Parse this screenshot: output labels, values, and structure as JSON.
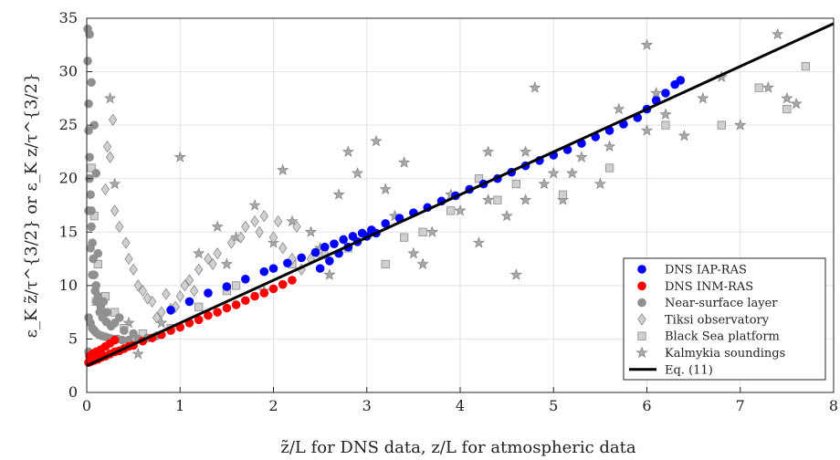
{
  "chart_data": {
    "type": "scatter",
    "xlabel": "z̃/L for DNS data, z/L for atmospheric data",
    "ylabel": "ε_K z̃/τ^{3/2}  or  ε_K z/τ^{3/2}",
    "xlim": [
      0,
      8
    ],
    "ylim": [
      0,
      35
    ],
    "x_ticks": [
      0,
      1,
      2,
      3,
      4,
      5,
      6,
      7,
      8
    ],
    "y_ticks": [
      0,
      5,
      10,
      15,
      20,
      25,
      30,
      35
    ],
    "grid": true,
    "legend_position": "bottom-right",
    "series": [
      {
        "name": "DNS IAP-RAS",
        "marker": "circle",
        "color": "#0000ff",
        "x": [
          2.0,
          2.15,
          2.3,
          2.45,
          2.55,
          2.65,
          2.75,
          2.85,
          2.95,
          3.05,
          3.2,
          3.35,
          3.5,
          3.65,
          3.8,
          3.95,
          4.1,
          4.25,
          4.4,
          4.55,
          4.7,
          4.85,
          5.0,
          5.15,
          5.3,
          5.45,
          5.6,
          5.75,
          5.9,
          6.0,
          6.1,
          6.2,
          6.3,
          6.36,
          2.5,
          2.6,
          2.7,
          2.8,
          2.9,
          3.0,
          3.1,
          1.5,
          1.7,
          1.9,
          0.9,
          1.1,
          1.3
        ],
        "y": [
          11.6,
          12.1,
          12.6,
          13.1,
          13.6,
          13.9,
          14.3,
          14.6,
          14.9,
          15.2,
          15.8,
          16.3,
          16.8,
          17.3,
          17.9,
          18.4,
          19.0,
          19.5,
          20.0,
          20.6,
          21.2,
          21.7,
          22.2,
          22.7,
          23.3,
          23.9,
          24.5,
          25.1,
          25.7,
          26.5,
          27.3,
          28.0,
          28.8,
          29.2,
          11.6,
          12.3,
          13.0,
          13.6,
          14.1,
          14.6,
          14.9,
          9.9,
          10.6,
          11.3,
          7.7,
          8.5,
          9.3
        ]
      },
      {
        "name": "DNS INM-RAS",
        "marker": "circle",
        "color": "#ff0000",
        "x": [
          0.02,
          0.05,
          0.08,
          0.12,
          0.16,
          0.2,
          0.25,
          0.3,
          0.35,
          0.4,
          0.45,
          0.5,
          0.6,
          0.7,
          0.8,
          0.9,
          1.0,
          1.1,
          1.2,
          1.3,
          1.4,
          1.5,
          1.6,
          1.7,
          1.8,
          1.9,
          2.0,
          2.1,
          2.2,
          0.03,
          0.06,
          0.1,
          0.15,
          0.2,
          0.25,
          0.3
        ],
        "y": [
          2.8,
          2.9,
          3.0,
          3.1,
          3.3,
          3.4,
          3.6,
          3.8,
          3.9,
          4.1,
          4.3,
          4.4,
          4.8,
          5.1,
          5.4,
          5.8,
          6.1,
          6.5,
          6.8,
          7.2,
          7.5,
          7.9,
          8.2,
          8.6,
          9.0,
          9.3,
          9.7,
          10.1,
          10.5,
          3.4,
          3.6,
          3.8,
          4.0,
          4.3,
          4.6,
          4.9
        ]
      },
      {
        "name": "Near-surface layer",
        "marker": "circle",
        "color": "#909090",
        "x": [
          0.01,
          0.01,
          0.02,
          0.02,
          0.03,
          0.03,
          0.04,
          0.05,
          0.05,
          0.06,
          0.07,
          0.08,
          0.1,
          0.12,
          0.15,
          0.02,
          0.04,
          0.06,
          0.08,
          0.1,
          0.13,
          0.16,
          0.2,
          0.24,
          0.28,
          0.33,
          0.38,
          0.45,
          0.55,
          0.65,
          0.75,
          0.3,
          0.35,
          0.22,
          0.18,
          0.12,
          0.1,
          0.08,
          0.05,
          0.03,
          0.02,
          0.04,
          0.06,
          0.09,
          0.11,
          0.14,
          0.17,
          0.21,
          0.26,
          0.4,
          0.5,
          0.02,
          0.03,
          0.05
        ],
        "y": [
          34.0,
          31.0,
          27.0,
          24.5,
          22.0,
          20.0,
          18.5,
          17.0,
          15.5,
          14.0,
          12.5,
          11.0,
          10.0,
          9.0,
          8.0,
          7.0,
          6.5,
          6.0,
          5.8,
          5.6,
          5.4,
          5.3,
          5.2,
          5.1,
          5.0,
          5.0,
          4.9,
          4.9,
          5.0,
          5.1,
          5.3,
          6.5,
          7.0,
          7.5,
          8.5,
          13.0,
          20.5,
          25.0,
          29.0,
          33.5,
          17.0,
          13.5,
          11.0,
          9.5,
          8.5,
          7.5,
          7.0,
          6.6,
          6.2,
          5.8,
          5.5,
          3.8,
          3.5,
          3.2
        ]
      },
      {
        "name": "Tiksi observatory",
        "marker": "diamond",
        "color": "#d0d0d0",
        "x": [
          0.2,
          0.28,
          0.35,
          0.42,
          0.5,
          0.6,
          0.7,
          0.8,
          0.9,
          1.0,
          1.1,
          1.2,
          1.3,
          1.4,
          1.55,
          1.7,
          1.8,
          1.9,
          2.0,
          2.1,
          2.2,
          2.3,
          2.4,
          2.55,
          0.45,
          0.3,
          0.25,
          0.22,
          0.55,
          0.75,
          0.95,
          1.15,
          1.35,
          1.65,
          1.85,
          2.05,
          2.25,
          0.65,
          0.85,
          1.05
        ],
        "y": [
          19.0,
          25.5,
          15.5,
          14.0,
          11.5,
          9.5,
          8.5,
          7.5,
          7.8,
          9.0,
          10.5,
          11.5,
          12.5,
          13.0,
          14.0,
          15.5,
          16.0,
          16.5,
          14.5,
          13.5,
          12.5,
          11.5,
          12.5,
          13.0,
          12.5,
          17.0,
          22.0,
          23.0,
          10.0,
          7.0,
          8.0,
          9.5,
          12.0,
          14.5,
          15.0,
          16.0,
          15.5,
          8.8,
          9.2,
          10.0
        ]
      },
      {
        "name": "Black Sea platform",
        "marker": "square",
        "color": "#d0d0d0",
        "x": [
          0.05,
          0.08,
          0.12,
          0.2,
          0.3,
          0.6,
          0.9,
          1.2,
          1.6,
          2.2,
          2.8,
          3.2,
          3.6,
          3.9,
          4.2,
          4.6,
          5.1,
          5.6,
          6.2,
          6.8,
          7.2,
          7.5,
          7.7,
          0.1,
          0.4,
          1.5,
          2.5,
          3.4,
          4.4
        ],
        "y": [
          21.0,
          16.5,
          12.0,
          9.0,
          7.5,
          5.5,
          6.0,
          8.0,
          10.0,
          12.0,
          13.5,
          12.0,
          15.0,
          17.0,
          20.0,
          19.5,
          18.5,
          21.0,
          25.0,
          25.0,
          28.5,
          26.5,
          30.5,
          8.5,
          6.0,
          9.5,
          13.0,
          14.5,
          18.0
        ]
      },
      {
        "name": "Kalmykia soundings",
        "marker": "star",
        "color": "#a8a8a8",
        "x": [
          0.25,
          0.3,
          0.55,
          0.8,
          1.0,
          1.2,
          1.4,
          1.6,
          1.8,
          1.9,
          2.1,
          2.2,
          2.4,
          2.5,
          2.7,
          2.8,
          2.9,
          3.1,
          3.2,
          3.3,
          3.4,
          3.5,
          3.7,
          3.9,
          4.0,
          4.2,
          4.3,
          4.5,
          4.6,
          4.7,
          4.8,
          4.9,
          5.1,
          5.2,
          5.3,
          5.5,
          5.6,
          5.7,
          6.0,
          6.1,
          6.2,
          6.4,
          6.6,
          6.8,
          7.0,
          7.3,
          7.4,
          7.5,
          7.6,
          4.3,
          4.7,
          5.0,
          6.0,
          3.6,
          2.6,
          1.5,
          2.0,
          0.45
        ],
        "y": [
          27.5,
          19.5,
          3.6,
          6.5,
          22.0,
          13.0,
          15.5,
          14.5,
          17.5,
          9.5,
          20.8,
          16.0,
          15.0,
          13.5,
          18.5,
          22.5,
          20.5,
          23.5,
          19.0,
          16.5,
          21.5,
          13.0,
          15.0,
          18.5,
          17.0,
          14.0,
          18.0,
          16.5,
          11.0,
          22.5,
          28.5,
          19.5,
          18.0,
          20.5,
          22.0,
          19.5,
          23.0,
          26.5,
          32.5,
          28.0,
          26.0,
          24.0,
          27.5,
          29.5,
          25.0,
          28.5,
          33.5,
          27.5,
          27.0,
          22.5,
          18.0,
          20.5,
          24.5,
          12.0,
          11.0,
          12.0,
          14.0,
          6.5
        ]
      },
      {
        "name": "Eq. (11)",
        "marker": "line",
        "color": "#000000",
        "x": [
          0,
          8
        ],
        "y": [
          2.5,
          34.5
        ]
      }
    ]
  }
}
